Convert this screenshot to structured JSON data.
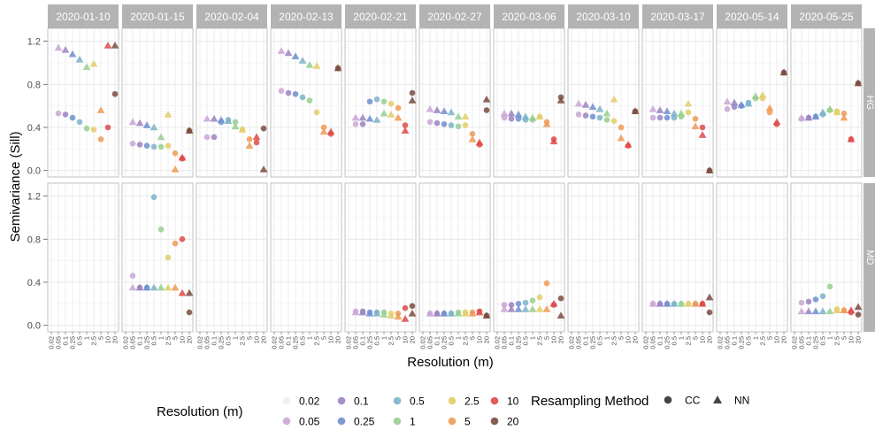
{
  "chart_data": {
    "type": "scatter",
    "facets": {
      "columns": [
        "2020-01-10",
        "2020-01-15",
        "2020-02-04",
        "2020-02-13",
        "2020-02-21",
        "2020-02-27",
        "2020-03-06",
        "2020-03-10",
        "2020-03-17",
        "2020-05-14",
        "2020-05-25"
      ],
      "rows": [
        "HG",
        "MD"
      ]
    },
    "xlabel": "Resolution (m)",
    "ylabel": "Semivariance (Sill)",
    "x_tick_labels": [
      "0.02",
      "0.05",
      "0.1",
      "0.25",
      "0.5",
      "1",
      "2.5",
      "5",
      "10",
      "20"
    ],
    "y_ticks": [
      0.0,
      0.4,
      0.8,
      1.2
    ],
    "y_tick_labels": [
      "0.0",
      "0.4",
      "0.8",
      "1.2"
    ],
    "ylim": [
      -0.06,
      1.32
    ],
    "grid": true,
    "legend_placement": "bottom",
    "legend_color": {
      "title": "Resolution (m)",
      "items": [
        {
          "label": "0.02",
          "color": "#f0f0f0"
        },
        {
          "label": "0.05",
          "color": "#c9a6d6"
        },
        {
          "label": "0.1",
          "color": "#9b82c2"
        },
        {
          "label": "0.25",
          "color": "#6e8fcf"
        },
        {
          "label": "0.5",
          "color": "#7cb3c9"
        },
        {
          "label": "1",
          "color": "#98cf8f"
        },
        {
          "label": "2.5",
          "color": "#e3cc6a"
        },
        {
          "label": "5",
          "color": "#ee9a55"
        },
        {
          "label": "10",
          "color": "#df4a4a"
        },
        {
          "label": "20",
          "color": "#7a4a40"
        }
      ]
    },
    "legend_shape": {
      "title": "Resampling Method",
      "items": [
        {
          "label": "CC",
          "shape": "circle"
        },
        {
          "label": "NN",
          "shape": "triangle"
        }
      ]
    },
    "panels": {
      "HG": {
        "2020-01-10": {
          "CC": [
            0.53,
            0.52,
            0.49,
            0.45,
            0.39,
            0.38,
            0.29,
            0.4,
            0.71
          ],
          "NN": [
            1.14,
            1.12,
            1.08,
            1.03,
            0.96,
            0.99,
            0.56,
            1.16,
            1.16
          ]
        },
        "2020-01-15": {
          "CC": [
            0.25,
            0.24,
            0.23,
            0.22,
            0.22,
            0.23,
            0.16,
            0.11,
            0.37
          ],
          "NN": [
            0.45,
            0.44,
            0.42,
            0.4,
            0.31,
            0.52,
            0.01,
            0.12,
            0.37
          ]
        },
        "2020-02-04": {
          "CC": [
            0.31,
            0.31,
            0.45,
            0.47,
            0.45,
            0.38,
            0.29,
            0.26,
            0.39
          ],
          "NN": [
            0.48,
            0.48,
            0.47,
            0.46,
            0.41,
            0.38,
            0.23,
            0.31,
            0.01
          ]
        },
        "2020-02-13": {
          "CC": [
            0.74,
            0.72,
            0.71,
            0.68,
            0.65,
            0.54,
            0.4,
            0.34,
            0.95
          ],
          "NN": [
            1.11,
            1.09,
            1.06,
            1.02,
            0.98,
            0.97,
            0.36,
            0.36,
            0.95
          ]
        },
        "2020-02-21": {
          "CC": [
            0.43,
            0.43,
            0.64,
            0.66,
            0.64,
            0.62,
            0.58,
            0.42,
            0.72
          ],
          "NN": [
            0.49,
            0.49,
            0.48,
            0.47,
            0.53,
            0.52,
            0.49,
            0.37,
            0.65
          ]
        },
        "2020-02-27": {
          "CC": [
            0.45,
            0.44,
            0.43,
            0.42,
            0.41,
            0.42,
            0.34,
            0.24,
            0.56
          ],
          "NN": [
            0.57,
            0.56,
            0.55,
            0.54,
            0.5,
            0.5,
            0.29,
            0.26,
            0.66
          ]
        },
        "2020-03-06": {
          "CC": [
            0.49,
            0.48,
            0.48,
            0.47,
            0.47,
            0.5,
            0.45,
            0.29,
            0.68
          ],
          "NN": [
            0.53,
            0.53,
            0.52,
            0.5,
            0.49,
            0.5,
            0.43,
            0.27,
            0.65
          ]
        },
        "2020-03-10": {
          "CC": [
            0.52,
            0.51,
            0.5,
            0.49,
            0.47,
            0.46,
            0.4,
            0.23,
            0.55
          ],
          "NN": [
            0.62,
            0.61,
            0.59,
            0.57,
            0.53,
            0.66,
            0.3,
            0.24,
            0.55
          ]
        },
        "2020-03-17": {
          "CC": [
            0.49,
            0.49,
            0.49,
            0.49,
            0.5,
            0.54,
            0.48,
            0.4,
            0.0
          ],
          "NN": [
            0.57,
            0.56,
            0.55,
            0.53,
            0.53,
            0.62,
            0.41,
            0.33,
            0.0
          ]
        },
        "2020-05-14": {
          "CC": [
            0.57,
            0.59,
            0.6,
            0.63,
            0.67,
            0.67,
            0.54,
            0.43,
            0.91
          ],
          "NN": [
            0.64,
            0.63,
            0.61,
            0.62,
            0.69,
            0.7,
            0.58,
            0.45,
            0.91
          ]
        },
        "2020-05-25": {
          "CC": [
            0.48,
            0.49,
            0.5,
            0.52,
            0.56,
            0.55,
            0.53,
            0.29,
            0.81
          ],
          "NN": [
            0.49,
            0.49,
            0.5,
            0.54,
            0.57,
            0.54,
            0.49,
            0.29,
            0.81
          ]
        }
      },
      "MD": {
        "2020-01-15": {
          "CC": [
            0.46,
            0.35,
            0.35,
            1.19,
            0.89,
            0.63,
            0.76,
            0.8,
            0.12
          ],
          "NN": [
            0.35,
            0.35,
            0.35,
            0.35,
            0.35,
            0.35,
            0.35,
            0.3,
            0.3
          ]
        },
        "2020-02-21": {
          "CC": [
            0.13,
            0.13,
            0.12,
            0.12,
            0.12,
            0.11,
            0.11,
            0.16,
            0.18
          ],
          "NN": [
            0.12,
            0.12,
            0.11,
            0.11,
            0.1,
            0.09,
            0.08,
            0.06,
            0.11
          ]
        },
        "2020-02-27": {
          "CC": [
            0.11,
            0.11,
            0.11,
            0.11,
            0.12,
            0.12,
            0.12,
            0.13,
            0.09
          ],
          "NN": [
            0.11,
            0.11,
            0.11,
            0.11,
            0.11,
            0.11,
            0.11,
            0.12,
            0.09
          ]
        },
        "2020-03-06": {
          "CC": [
            0.19,
            0.19,
            0.2,
            0.21,
            0.23,
            0.26,
            0.39,
            0.19,
            0.25
          ],
          "NN": [
            0.15,
            0.15,
            0.15,
            0.15,
            0.15,
            0.15,
            0.15,
            0.2,
            0.09
          ]
        },
        "2020-03-17": {
          "CC": [
            0.2,
            0.2,
            0.2,
            0.2,
            0.2,
            0.2,
            0.2,
            0.2,
            0.12
          ],
          "NN": [
            0.2,
            0.2,
            0.2,
            0.2,
            0.2,
            0.2,
            0.2,
            0.2,
            0.26
          ]
        },
        "2020-05-25": {
          "CC": [
            0.21,
            0.22,
            0.24,
            0.27,
            0.36,
            0.15,
            0.14,
            0.12,
            0.1
          ],
          "NN": [
            0.13,
            0.13,
            0.13,
            0.13,
            0.13,
            0.14,
            0.14,
            0.14,
            0.17
          ]
        }
      }
    }
  }
}
